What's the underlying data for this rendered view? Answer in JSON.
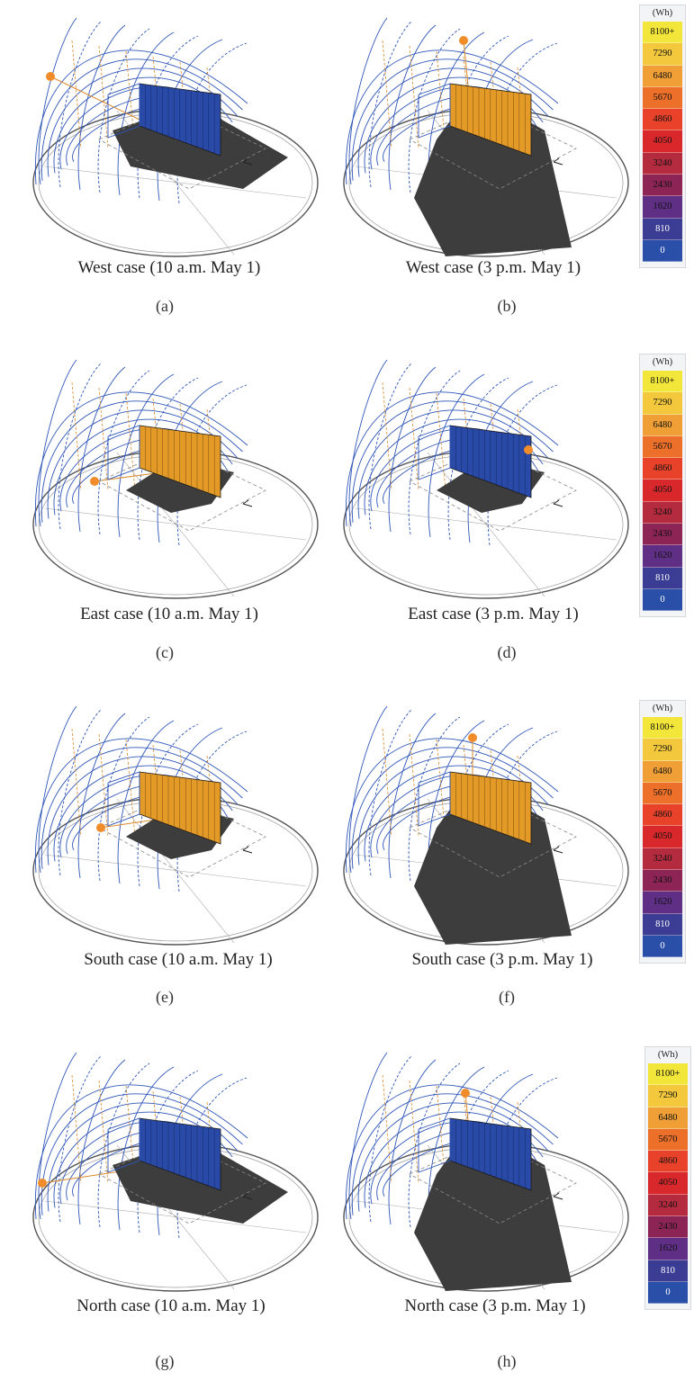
{
  "legend": {
    "unit": "(Wh)",
    "steps": [
      {
        "label": "8100+",
        "color": "#f2e63a"
      },
      {
        "label": "7290",
        "color": "#f3c83d"
      },
      {
        "label": "6480",
        "color": "#ef9f36"
      },
      {
        "label": "5670",
        "color": "#ec6f2a"
      },
      {
        "label": "4860",
        "color": "#e8432a"
      },
      {
        "label": "4050",
        "color": "#d9282c"
      },
      {
        "label": "3240",
        "color": "#b42a3e"
      },
      {
        "label": "2430",
        "color": "#8c2456"
      },
      {
        "label": "1620",
        "color": "#5f2f86"
      },
      {
        "label": "810",
        "color": "#3a3d93"
      },
      {
        "label": "0",
        "color": "#2a4fa8"
      }
    ]
  },
  "panels": [
    {
      "id": "a",
      "caption": "West case (10 a.m. May 1)",
      "label": "(a)",
      "facade": "blue",
      "shadow": "medium"
    },
    {
      "id": "b",
      "caption": "West case (3 p.m. May 1)",
      "label": "(b)",
      "facade": "orange",
      "shadow": "large"
    },
    {
      "id": "c",
      "caption": "East case (10 a.m. May 1)",
      "label": "(c)",
      "facade": "orange",
      "shadow": "small"
    },
    {
      "id": "d",
      "caption": "East case (3 p.m. May 1)",
      "label": "(d)",
      "facade": "blue",
      "shadow": "small"
    },
    {
      "id": "e",
      "caption": "South case (10 a.m. May 1)",
      "label": "(e)",
      "facade": "orange",
      "shadow": "small"
    },
    {
      "id": "f",
      "caption": "South case (3 p.m. May 1)",
      "label": "(f)",
      "facade": "orange",
      "shadow": "large"
    },
    {
      "id": "g",
      "caption": "North case (10 a.m. May 1)",
      "label": "(g)",
      "facade": "blue",
      "shadow": "medium"
    },
    {
      "id": "h",
      "caption": "North case (3 p.m. May 1)",
      "label": "(h)",
      "facade": "blue",
      "shadow": "large"
    }
  ]
}
